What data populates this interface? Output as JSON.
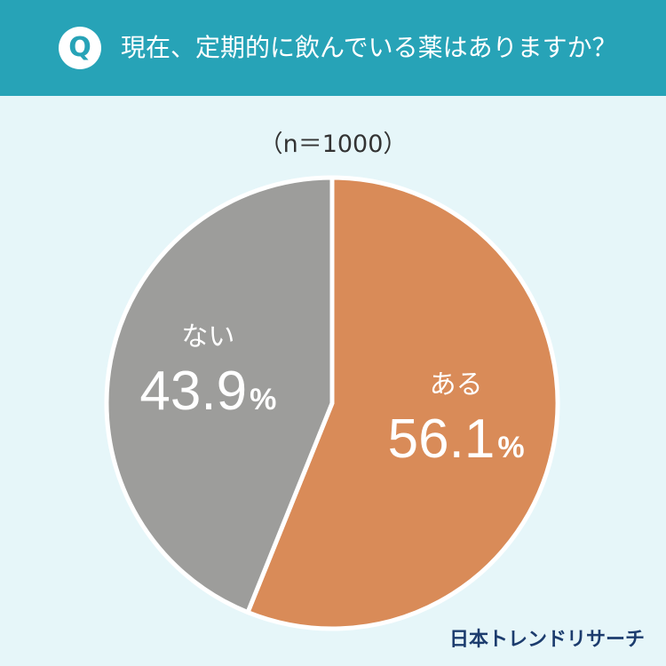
{
  "header": {
    "badge": "Q",
    "question": "現在、定期的に飲んでいる薬はありますか？"
  },
  "sample_size": "（n＝1000）",
  "brand": "日本トレンドリサーチ",
  "colors": {
    "header_bg": "#27a3b7",
    "background": "#e6f6f9",
    "yes": "#d98b58",
    "no": "#9d9d9b"
  },
  "chart_data": {
    "type": "pie",
    "title": "現在、定期的に飲んでいる薬はありますか？",
    "subtitle": "（n＝1000）",
    "slices": [
      {
        "label": "ある",
        "value": 56.1,
        "display": "56.1",
        "unit": "%",
        "color": "#d98b58"
      },
      {
        "label": "ない",
        "value": 43.9,
        "display": "43.9",
        "unit": "%",
        "color": "#9d9d9b"
      }
    ],
    "start": "12 o'clock",
    "direction": "clockwise"
  }
}
